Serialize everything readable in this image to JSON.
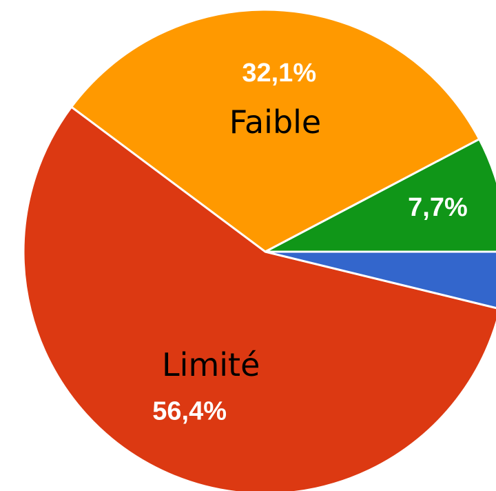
{
  "chart_data": {
    "type": "pie",
    "categories": [
      null,
      "Faible",
      "Limité",
      null
    ],
    "values": [
      7.7,
      32.1,
      56.4,
      3.8
    ],
    "value_labels": [
      "7,7%",
      "32,1%",
      "56,4%",
      null
    ],
    "colors": [
      "#109618",
      "#ff9900",
      "#dc3912",
      "#3366cc"
    ]
  }
}
